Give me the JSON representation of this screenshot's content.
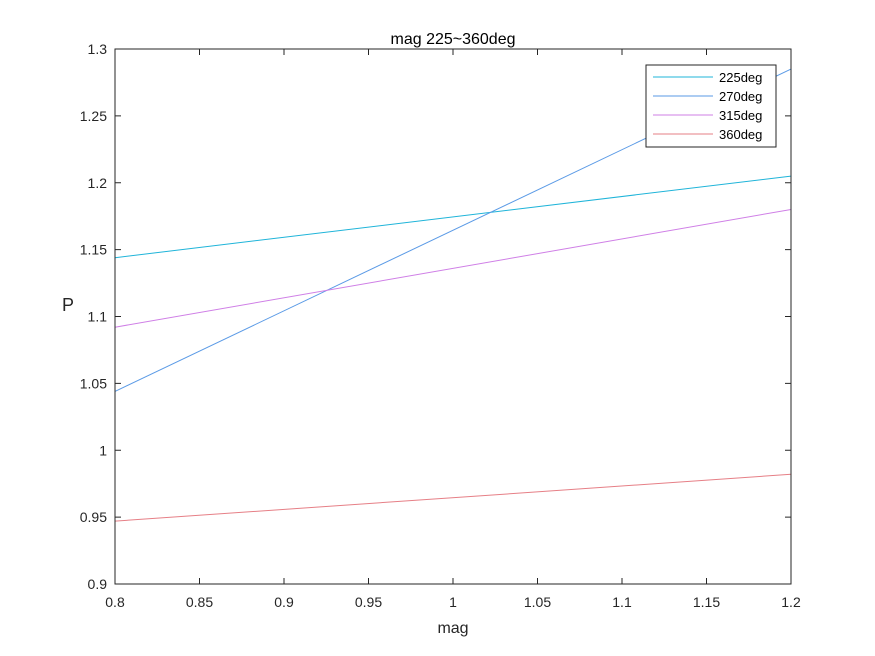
{
  "chart_data": {
    "type": "line",
    "title": "mag 225~360deg",
    "xlabel": "mag",
    "ylabel": "P",
    "xlim": [
      0.8,
      1.2
    ],
    "ylim": [
      0.9,
      1.3
    ],
    "xticks": [
      "0.8",
      "0.85",
      "0.9",
      "0.95",
      "1",
      "1.05",
      "1.1",
      "1.15",
      "1.2"
    ],
    "yticks": [
      "0.9",
      "0.95",
      "1",
      "1.05",
      "1.1",
      "1.15",
      "1.2",
      "1.25",
      "1.3"
    ],
    "grid": false,
    "legend_position": "top-right",
    "x": [
      0.8,
      1.2
    ],
    "series": [
      {
        "name": "225deg",
        "color": "#1fb4d9",
        "values": [
          1.144,
          1.205
        ]
      },
      {
        "name": "270deg",
        "color": "#5a9ae6",
        "values": [
          1.044,
          1.285
        ]
      },
      {
        "name": "315deg",
        "color": "#cf7fe6",
        "values": [
          1.092,
          1.18
        ]
      },
      {
        "name": "360deg",
        "color": "#e67f86",
        "values": [
          0.947,
          0.982
        ]
      }
    ]
  }
}
